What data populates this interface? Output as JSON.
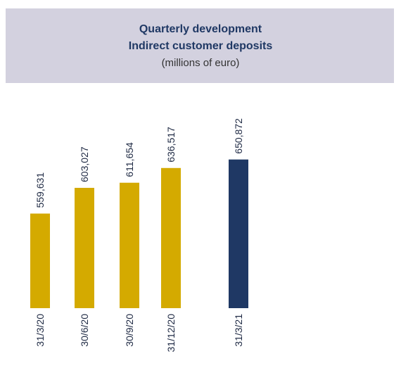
{
  "chart_data": {
    "type": "bar",
    "title": "Quarterly development",
    "subtitle": "Indirect customer deposits",
    "note": "(millions of euro)",
    "categories": [
      "31/3/20",
      "30/6/20",
      "30/9/20",
      "31/12/20",
      "31/3/21"
    ],
    "values": [
      559631,
      603027,
      611654,
      636517,
      650872
    ],
    "value_labels": [
      "559,631",
      "603,027",
      "611,654",
      "636,517",
      "650,872"
    ],
    "colors": [
      "#d4aa00",
      "#d4aa00",
      "#d4aa00",
      "#d4aa00",
      "#1f3864"
    ],
    "ylim": [
      400000,
      660000
    ]
  }
}
